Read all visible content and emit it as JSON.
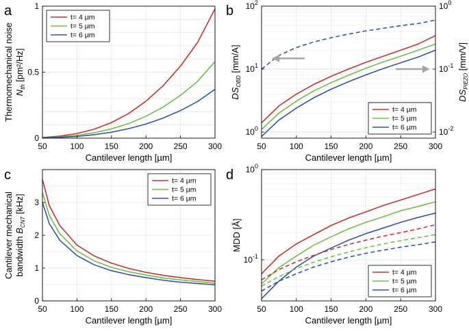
{
  "colors": {
    "red": "#c8312f",
    "green": "#6fbf3f",
    "blue": "#2f56a6",
    "arrow": "#a6a6a6"
  },
  "chart_data": [
    {
      "panel": "a",
      "type": "line",
      "xlabel": "Cantilever length [µm]",
      "ylabel_line1": "Thermomechanical noise",
      "ylabel_sym": "N",
      "ylabel_sub": "th",
      "ylabel_unit": " [pm²/Hz]",
      "xlim": [
        50,
        300
      ],
      "ylim": [
        0,
        1
      ],
      "yscale": "linear",
      "xticks": [
        "50",
        "100",
        "150",
        "200",
        "250",
        "300"
      ],
      "yticks": [
        {
          "v": 0,
          "label": "0"
        },
        {
          "v": 0.5,
          "label": "0.5"
        },
        {
          "v": 1,
          "label": "1"
        }
      ],
      "legend_position": "top-left",
      "series": [
        {
          "name": "t= 4 µm",
          "color": "red",
          "style": "solid",
          "x": [
            50,
            75,
            100,
            125,
            150,
            175,
            200,
            225,
            250,
            275,
            300
          ],
          "y": [
            0.005,
            0.015,
            0.035,
            0.068,
            0.118,
            0.187,
            0.28,
            0.398,
            0.546,
            0.727,
            0.98
          ]
        },
        {
          "name": "t= 5 µm",
          "color": "green",
          "style": "solid",
          "x": [
            50,
            75,
            100,
            125,
            150,
            175,
            200,
            225,
            250,
            275,
            300
          ],
          "y": [
            0.003,
            0.009,
            0.021,
            0.041,
            0.07,
            0.111,
            0.166,
            0.236,
            0.324,
            0.431,
            0.58
          ]
        },
        {
          "name": "t= 6 µm",
          "color": "blue",
          "style": "solid",
          "x": [
            50,
            75,
            100,
            125,
            150,
            175,
            200,
            225,
            250,
            275,
            300
          ],
          "y": [
            0.002,
            0.006,
            0.013,
            0.026,
            0.045,
            0.072,
            0.107,
            0.152,
            0.209,
            0.278,
            0.37
          ]
        }
      ]
    },
    {
      "panel": "b",
      "type": "line",
      "xlabel": "Cantilever length [µm]",
      "ylabel_sym": "DS",
      "ylabel_sub": "OBD",
      "ylabel_unit": " [mm/A]",
      "ylabel2_sym": "DS",
      "ylabel2_sub": "PIEZO",
      "ylabel2_unit": " [mm/V]",
      "xlim": [
        50,
        300
      ],
      "ylim": [
        0.8,
        100
      ],
      "y2lim": [
        0.008,
        1
      ],
      "yscale": "log",
      "xticks": [
        "50",
        "100",
        "150",
        "200",
        "250",
        "300"
      ],
      "yticks": [
        {
          "v": 1,
          "base": "10",
          "exp": "0"
        },
        {
          "v": 10,
          "base": "10",
          "exp": "1"
        },
        {
          "v": 100,
          "base": "10",
          "exp": "2"
        }
      ],
      "y2ticks": [
        {
          "v": 0.01,
          "base": "10",
          "exp": "-2"
        },
        {
          "v": 0.1,
          "base": "10",
          "exp": "-1"
        },
        {
          "v": 1,
          "base": "10",
          "exp": "0"
        }
      ],
      "legend_position": "bottom-right",
      "series": [
        {
          "name": "t= 4 µm",
          "color": "red",
          "style": "solid",
          "x": [
            50,
            75,
            100,
            125,
            150,
            175,
            200,
            225,
            250,
            275,
            300
          ],
          "y": [
            1.4,
            2.6,
            4.0,
            5.7,
            7.7,
            10.0,
            12.8,
            16.0,
            20.0,
            25.0,
            34.0
          ]
        },
        {
          "name": "t= 5 µm",
          "color": "green",
          "style": "solid",
          "x": [
            50,
            75,
            100,
            125,
            150,
            175,
            200,
            225,
            250,
            275,
            300
          ],
          "y": [
            1.1,
            2.0,
            3.1,
            4.5,
            6.1,
            8.0,
            10.3,
            13.0,
            16.0,
            20.0,
            25.0
          ]
        },
        {
          "name": "t= 6 µm",
          "color": "blue",
          "style": "solid",
          "x": [
            50,
            75,
            100,
            125,
            150,
            175,
            200,
            225,
            250,
            275,
            300
          ],
          "y": [
            0.85,
            1.55,
            2.4,
            3.5,
            4.8,
            6.3,
            8.1,
            10.2,
            12.6,
            15.5,
            20.0
          ]
        },
        {
          "name": "DS PIEZO",
          "color": "blue",
          "style": "dashed",
          "axis": "y2",
          "x": [
            50,
            75,
            100,
            125,
            150,
            175,
            200,
            225,
            250,
            275,
            300
          ],
          "y": [
            0.1,
            0.165,
            0.22,
            0.27,
            0.315,
            0.36,
            0.405,
            0.445,
            0.49,
            0.53,
            0.6
          ]
        }
      ],
      "annotations": [
        {
          "type": "arrow",
          "direction": "left"
        },
        {
          "type": "arrow",
          "direction": "right"
        }
      ]
    },
    {
      "panel": "c",
      "type": "line",
      "xlabel": "Cantilever length [µm]",
      "ylabel_line1": "Cantilever mechanical",
      "ylabel_pre": "bandwidth ",
      "ylabel_sym": "B",
      "ylabel_sub": "CNT",
      "ylabel_unit": " [kHz]",
      "xlim": [
        50,
        300
      ],
      "ylim": [
        0,
        4
      ],
      "yscale": "linear",
      "xticks": [
        "50",
        "100",
        "150",
        "200",
        "250",
        "300"
      ],
      "yticks": [
        {
          "v": 0,
          "label": "0"
        },
        {
          "v": 1,
          "label": "1"
        },
        {
          "v": 2,
          "label": "2"
        },
        {
          "v": 3,
          "label": "3"
        }
      ],
      "legend_position": "top-right",
      "series": [
        {
          "name": "t= 4 µm",
          "color": "red",
          "style": "solid",
          "x": [
            50,
            60,
            75,
            100,
            125,
            150,
            175,
            200,
            225,
            250,
            275,
            300
          ],
          "y": [
            3.7,
            2.9,
            2.3,
            1.7,
            1.37,
            1.15,
            0.99,
            0.87,
            0.78,
            0.71,
            0.65,
            0.6
          ]
        },
        {
          "name": "t= 5 µm",
          "color": "green",
          "style": "solid",
          "x": [
            50,
            60,
            75,
            100,
            125,
            150,
            175,
            200,
            225,
            250,
            275,
            300
          ],
          "y": [
            3.3,
            2.6,
            2.05,
            1.52,
            1.22,
            1.02,
            0.89,
            0.79,
            0.7,
            0.64,
            0.59,
            0.54
          ]
        },
        {
          "name": "t= 6 µm",
          "color": "blue",
          "style": "solid",
          "x": [
            50,
            60,
            75,
            100,
            125,
            150,
            175,
            200,
            225,
            250,
            275,
            300
          ],
          "y": [
            3.0,
            2.35,
            1.85,
            1.38,
            1.1,
            0.92,
            0.8,
            0.71,
            0.63,
            0.57,
            0.53,
            0.49
          ]
        }
      ]
    },
    {
      "panel": "d",
      "type": "line",
      "xlabel": "Cantilever length [µm]",
      "ylabel": "MDD [Å]",
      "xlim": [
        50,
        300
      ],
      "ylim": [
        0.035,
        1
      ],
      "yscale": "log",
      "xticks": [
        "50",
        "100",
        "150",
        "200",
        "250",
        "300"
      ],
      "yticks": [
        {
          "v": 0.1,
          "base": "10",
          "exp": "-1"
        },
        {
          "v": 1,
          "base": "10",
          "exp": "0"
        }
      ],
      "legend_position": "bottom-right",
      "series": [
        {
          "name": "t= 4 µm",
          "color": "red",
          "style": "solid",
          "x": [
            50,
            75,
            100,
            125,
            150,
            175,
            200,
            225,
            250,
            275,
            300
          ],
          "y": [
            0.07,
            0.11,
            0.15,
            0.19,
            0.24,
            0.29,
            0.34,
            0.4,
            0.46,
            0.53,
            0.61
          ]
        },
        {
          "name": "t= 5 µm",
          "color": "green",
          "style": "solid",
          "x": [
            50,
            75,
            100,
            125,
            150,
            175,
            200,
            225,
            250,
            275,
            300
          ],
          "y": [
            0.054,
            0.082,
            0.11,
            0.145,
            0.18,
            0.22,
            0.26,
            0.3,
            0.35,
            0.39,
            0.44
          ]
        },
        {
          "name": "t= 6 µm",
          "color": "blue",
          "style": "solid",
          "x": [
            50,
            75,
            100,
            125,
            150,
            175,
            200,
            225,
            250,
            275,
            300
          ],
          "y": [
            0.037,
            0.058,
            0.083,
            0.11,
            0.135,
            0.165,
            0.195,
            0.225,
            0.26,
            0.295,
            0.33
          ]
        },
        {
          "name": "t= 4 µm dashed",
          "color": "red",
          "style": "dashed",
          "x": [
            50,
            75,
            100,
            125,
            150,
            175,
            200,
            225,
            250,
            275,
            300
          ],
          "y": [
            0.06,
            0.078,
            0.095,
            0.112,
            0.13,
            0.148,
            0.165,
            0.183,
            0.2,
            0.22,
            0.245
          ]
        },
        {
          "name": "t= 5 µm dashed",
          "color": "green",
          "style": "dashed",
          "x": [
            50,
            75,
            100,
            125,
            150,
            175,
            200,
            225,
            250,
            275,
            300
          ],
          "y": [
            0.051,
            0.065,
            0.08,
            0.094,
            0.108,
            0.122,
            0.136,
            0.15,
            0.163,
            0.176,
            0.19
          ]
        },
        {
          "name": "t= 6 µm dashed",
          "color": "blue",
          "style": "dashed",
          "x": [
            50,
            75,
            100,
            125,
            150,
            175,
            200,
            225,
            250,
            275,
            300
          ],
          "y": [
            0.045,
            0.058,
            0.07,
            0.083,
            0.095,
            0.107,
            0.118,
            0.128,
            0.138,
            0.147,
            0.158
          ]
        }
      ]
    }
  ]
}
